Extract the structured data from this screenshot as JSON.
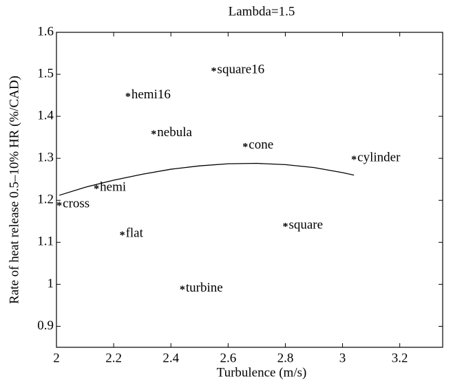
{
  "chart_data": {
    "type": "scatter",
    "title": "Lambda=1.5",
    "x_label": "Turbulence (m/s)",
    "y_label": "Rate of heat release 0.5–10% HR (%/CAD)",
    "xlim": [
      2,
      3.35
    ],
    "ylim": [
      0.85,
      1.6
    ],
    "xticks": [
      2,
      2.2,
      2.4,
      2.6,
      2.8,
      3,
      3.2
    ],
    "yticks": [
      0.9,
      1,
      1.1,
      1.2,
      1.3,
      1.4,
      1.5,
      1.6
    ],
    "points": {
      "labels": [
        "square16",
        "hemi16",
        "nebula",
        "cone",
        "cylinder",
        "hemi",
        "cross",
        "flat",
        "square",
        "turbine"
      ],
      "x": [
        2.55,
        2.25,
        2.34,
        2.66,
        3.04,
        2.14,
        2.01,
        2.23,
        2.8,
        2.44
      ],
      "values": [
        1.51,
        1.45,
        1.36,
        1.33,
        1.3,
        1.23,
        1.19,
        1.12,
        1.14,
        0.99
      ]
    },
    "fit": {
      "x": [
        2.01,
        2.1,
        2.2,
        2.3,
        2.4,
        2.5,
        2.6,
        2.7,
        2.8,
        2.9,
        3.0,
        3.04
      ],
      "values": [
        1.212,
        1.231,
        1.248,
        1.262,
        1.274,
        1.282,
        1.287,
        1.288,
        1.285,
        1.278,
        1.266,
        1.26
      ]
    }
  }
}
